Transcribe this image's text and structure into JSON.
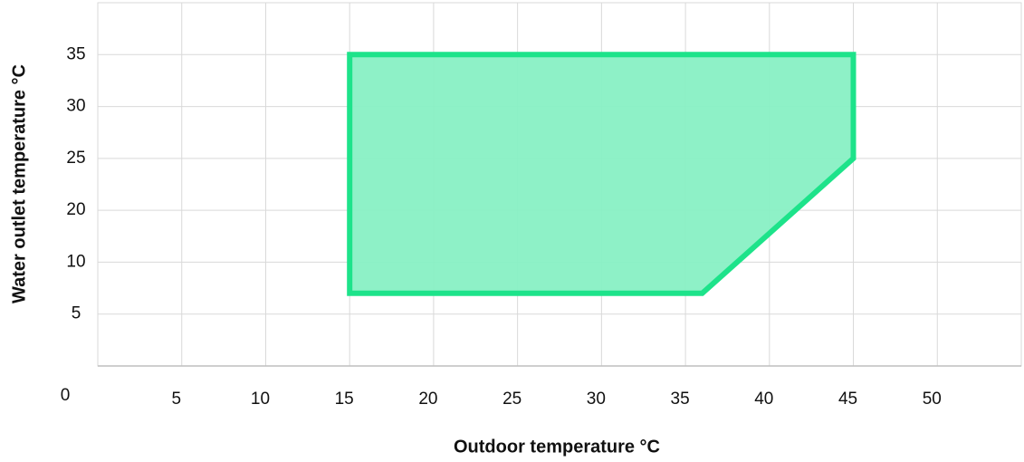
{
  "chart_data": {
    "type": "polygon",
    "x_label": "Outdoor temperature °C",
    "y_label": "Water outlet temperature °C",
    "origin_label": 0,
    "xlim": [
      0,
      55
    ],
    "xticks": [
      5,
      10,
      15,
      20,
      25,
      30,
      35,
      40,
      45,
      50
    ],
    "ylim": [
      0,
      40
    ],
    "yticks": [
      35,
      30,
      25,
      20,
      10,
      5
    ],
    "grid": true,
    "series": [
      {
        "fill": "#88f0c4",
        "color": "#1de38a",
        "x": [
          15,
          45,
          45,
          36,
          15
        ],
        "values": [
          35,
          35,
          25,
          7,
          7
        ]
      }
    ]
  }
}
